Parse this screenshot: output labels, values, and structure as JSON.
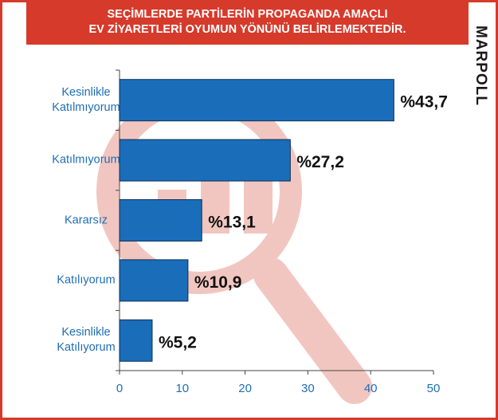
{
  "header": {
    "title_line1": "SEÇİMLERDE PARTİLERİN PROPAGANDA AMAÇLI",
    "title_line2": "EV ZİYARETLERİ OYUMUN YÖNÜNÜ BELİRLEMEKTEDİR."
  },
  "brand": {
    "name": "MARPOLL"
  },
  "colors": {
    "accent": "#d63a2b",
    "bar": "#1a6db9",
    "bar_stroke": "#0d2f55",
    "axis_text": "#1f6db3",
    "watermark": "#f2c6c0"
  },
  "chart_data": {
    "type": "bar",
    "orientation": "horizontal",
    "categories": [
      "Kesinlikle Katılmıyorum",
      "Katılmıyorum",
      "Kararsız",
      "Katılıyorum",
      "Kesinlikle Katılıyorum"
    ],
    "category_lines": [
      [
        "Kesinlikle",
        "Katılmıyorum"
      ],
      [
        "Katılmıyorum"
      ],
      [
        "Kararsız"
      ],
      [
        "Katılıyorum"
      ],
      [
        "Kesinlikle",
        "Katılıyorum"
      ]
    ],
    "values": [
      43.7,
      27.2,
      13.1,
      10.9,
      5.2
    ],
    "value_labels": [
      "%43,7",
      "%27,2",
      "%13,1",
      "%10,9",
      "%5,2"
    ],
    "xlim": [
      0,
      50
    ],
    "xticks": [
      0,
      10,
      20,
      30,
      40,
      50
    ],
    "grid": false
  }
}
